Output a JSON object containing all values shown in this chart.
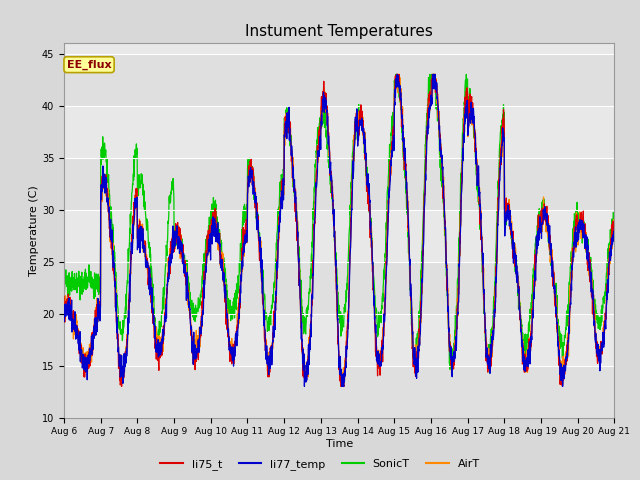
{
  "title": "Instument Temperatures",
  "xlabel": "Time",
  "ylabel": "Temperature (C)",
  "ylim": [
    10,
    46
  ],
  "yticks": [
    10,
    15,
    20,
    25,
    30,
    35,
    40,
    45
  ],
  "figure_bg": "#d8d8d8",
  "plot_bg": "#e8e8e8",
  "grid_band_color": "#d0d0d0",
  "series_colors": {
    "li75_t": "#dd0000",
    "li77_temp": "#0000cc",
    "SonicT": "#00cc00",
    "AirT": "#ff8800"
  },
  "annotation_text": "EE_flux",
  "annotation_color": "#8b0000",
  "annotation_bg": "#ffff99",
  "annotation_border": "#b8a000",
  "xtick_labels": [
    "Aug 6",
    "Aug 7",
    "Aug 8",
    "Aug 9",
    "Aug 10",
    "Aug 11",
    "Aug 12",
    "Aug 13",
    "Aug 14",
    "Aug 15",
    "Aug 16",
    "Aug 17",
    "Aug 18",
    "Aug 19",
    "Aug 20",
    "Aug 21"
  ],
  "n_days": 15,
  "pts_per_day": 144
}
